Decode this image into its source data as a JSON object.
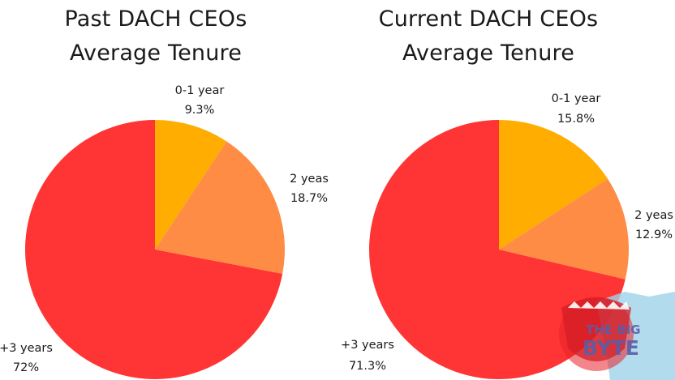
{
  "colors": {
    "slice_0_1_year": "#ffad00",
    "slice_2_years": "#ff8c44",
    "slice_3plus_years": "#ff3434",
    "logo_red": "#e8232a",
    "logo_blue": "#9fd3ea",
    "logo_text": "#5a5ea8"
  },
  "logo": {
    "line1": "THE BIG",
    "line2": "BYTE"
  },
  "chart_data": [
    {
      "type": "pie",
      "title": [
        "Past DACH CEOs",
        "Average Tenure"
      ],
      "slices": [
        {
          "label": "0-1 year",
          "value": 9.3,
          "value_label": "9.3%",
          "color": "#ffad00"
        },
        {
          "label": "2 yeas",
          "value": 18.7,
          "value_label": "18.7%",
          "color": "#ff8c44"
        },
        {
          "label": "+3 years",
          "value": 72,
          "value_label": "72%",
          "color": "#ff3434"
        }
      ],
      "start_angle": "12 o'clock",
      "direction": "clockwise",
      "legend": "none"
    },
    {
      "type": "pie",
      "title": [
        "Current DACH CEOs",
        "Average Tenure"
      ],
      "slices": [
        {
          "label": "0-1 year",
          "value": 15.8,
          "value_label": "15.8%",
          "color": "#ffad00"
        },
        {
          "label": "2 yeas",
          "value": 12.9,
          "value_label": "12.9%",
          "color": "#ff8c44"
        },
        {
          "label": "+3 years",
          "value": 71.3,
          "value_label": "71.3%",
          "color": "#ff3434"
        }
      ],
      "start_angle": "12 o'clock",
      "direction": "clockwise",
      "legend": "none"
    }
  ]
}
